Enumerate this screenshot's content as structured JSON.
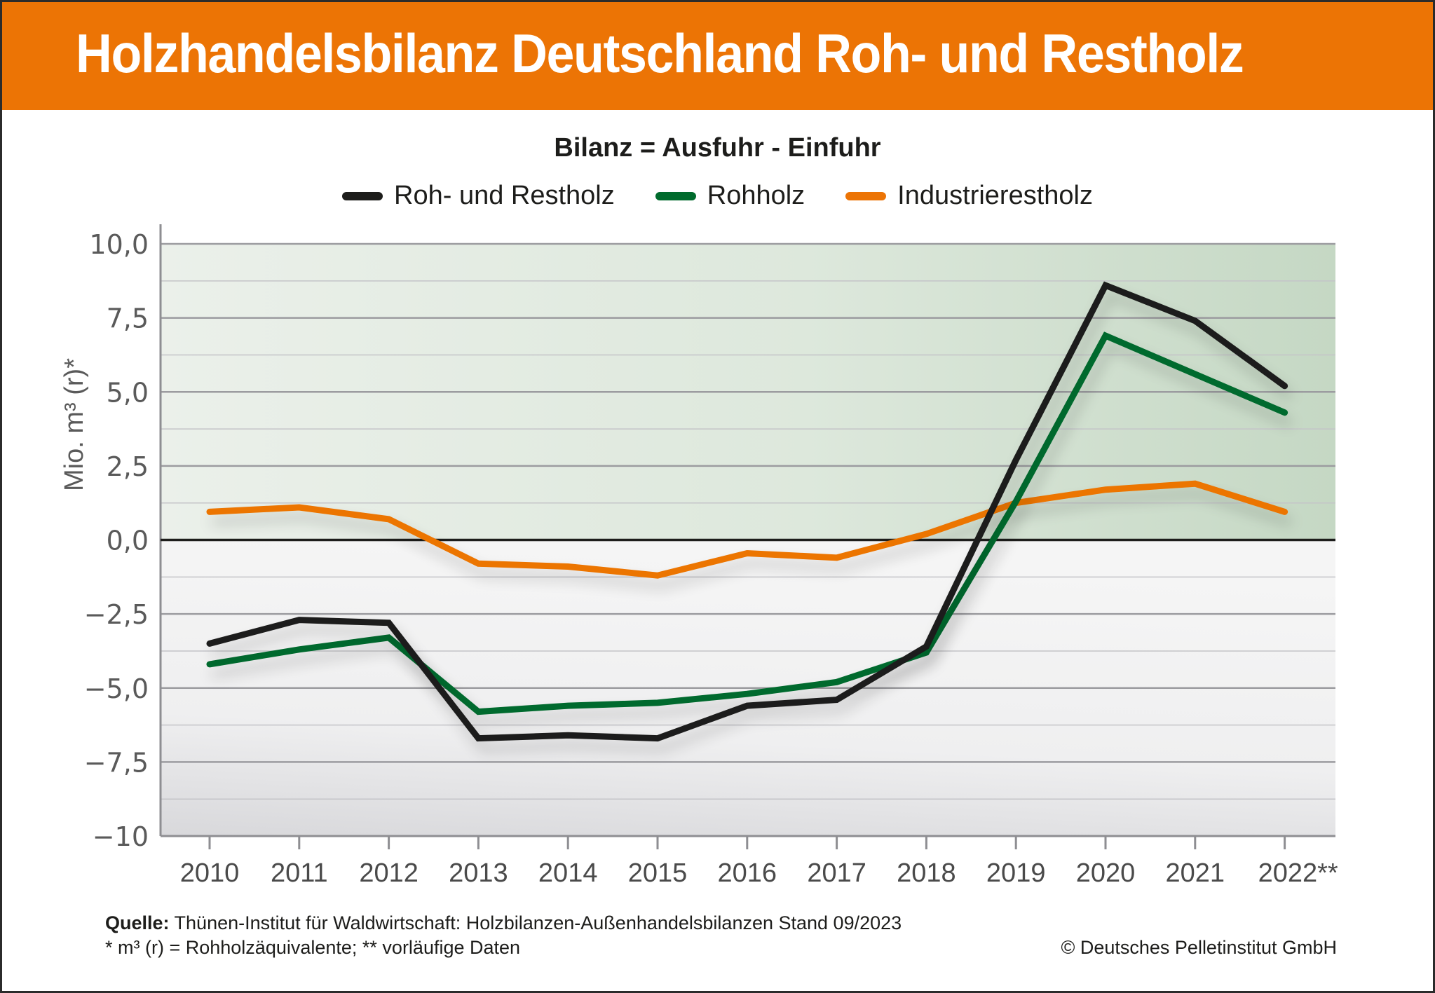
{
  "header": {
    "title": "Holzhandelsbilanz Deutschland Roh- und Restholz"
  },
  "subtitle": "Bilanz = Ausfuhr - Einfuhr",
  "legend": [
    {
      "label": "Roh- und Restholz",
      "color": "#1d1d1b"
    },
    {
      "label": "Rohholz",
      "color": "#006b2d"
    },
    {
      "label": "Industrierestholz",
      "color": "#ec7405"
    }
  ],
  "footer": {
    "source_label": "Quelle:",
    "source_text": " Thünen-Institut für Waldwirtschaft: Holzbilanzen-Außenhandelsbilanzen Stand 09/2023",
    "note": "* m³ (r) = Rohholzäquivalente; ** vorläufige Daten",
    "copyright": "© Deutsches Pelletinstitut GmbH"
  },
  "colors": {
    "banner": "#ec7405",
    "positive_area": "#c8dac8",
    "negative_area": "#e8e8ea"
  },
  "chart_data": {
    "type": "line",
    "title": "Holzhandelsbilanz Deutschland Roh- und Restholz",
    "subtitle": "Bilanz = Ausfuhr - Einfuhr",
    "xlabel": "",
    "ylabel": "Mio. m³ (r)*",
    "categories": [
      "2010",
      "2011",
      "2012",
      "2013",
      "2014",
      "2015",
      "2016",
      "2017",
      "2018",
      "2019",
      "2020",
      "2021",
      "2022**"
    ],
    "ylim": [
      -10,
      10
    ],
    "yticks": [
      10,
      7.5,
      5,
      2.5,
      0,
      -2.5,
      -5,
      -7.5,
      -10
    ],
    "ytick_labels": [
      "10,0",
      "7,5",
      "5,0",
      "2,5",
      "0,0",
      "−2,5",
      "−5,0",
      "−7,5",
      "−10"
    ],
    "grid": true,
    "legend_position": "top-center",
    "series": [
      {
        "name": "Roh- und Restholz",
        "color": "#1d1d1b",
        "values": [
          -3.5,
          -2.7,
          -2.8,
          -6.7,
          -6.6,
          -6.7,
          -5.6,
          -5.4,
          -3.6,
          2.7,
          8.6,
          7.4,
          5.2
        ]
      },
      {
        "name": "Rohholz",
        "color": "#006b2d",
        "values": [
          -4.2,
          -3.7,
          -3.3,
          -5.8,
          -5.6,
          -5.5,
          -5.2,
          -4.8,
          -3.8,
          1.3,
          6.9,
          5.6,
          4.3
        ]
      },
      {
        "name": "Industrierestholz",
        "color": "#ec7405",
        "values": [
          0.95,
          1.1,
          0.7,
          -0.8,
          -0.9,
          -1.2,
          -0.45,
          -0.6,
          0.2,
          1.25,
          1.7,
          1.9,
          0.95
        ]
      }
    ]
  }
}
